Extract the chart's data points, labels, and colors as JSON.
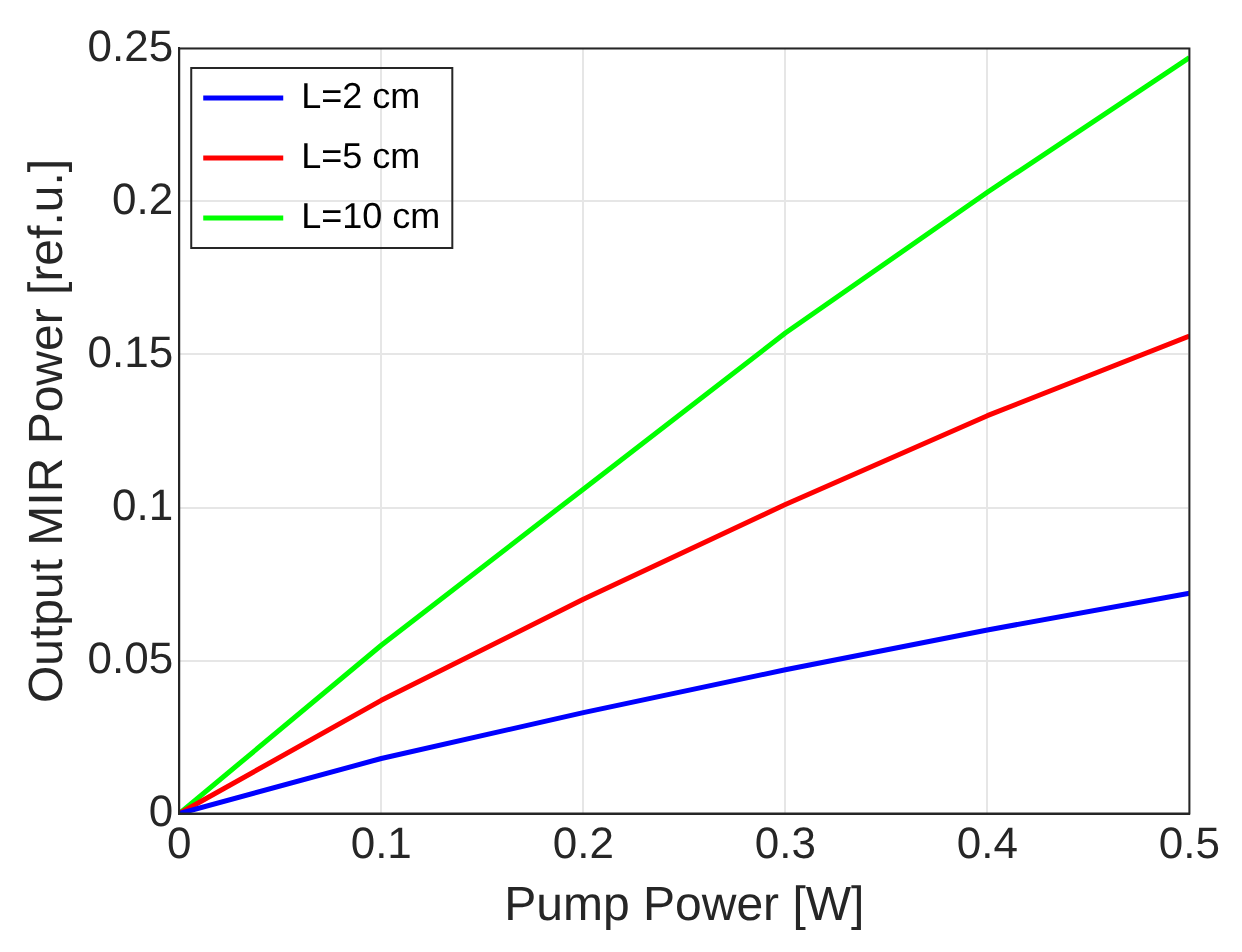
{
  "chart_data": {
    "type": "line",
    "xlabel": "Pump Power [W]",
    "ylabel": "Output MIR Power [ref.u.]",
    "x": [
      0,
      0.1,
      0.2,
      0.3,
      0.4,
      0.5
    ],
    "series": [
      {
        "name": "L=2 cm",
        "color": "#0000ff",
        "values": [
          0,
          0.018,
          0.033,
          0.047,
          0.06,
          0.072
        ]
      },
      {
        "name": "L=5 cm",
        "color": "#ff0000",
        "values": [
          0,
          0.037,
          0.07,
          0.101,
          0.13,
          0.156
        ]
      },
      {
        "name": "L=10 cm",
        "color": "#00ff00",
        "values": [
          0,
          0.055,
          0.106,
          0.157,
          0.203,
          0.247
        ]
      }
    ],
    "xlim": [
      0,
      0.5
    ],
    "xticks": [
      0,
      0.1,
      0.2,
      0.3,
      0.4,
      0.5
    ],
    "ylim": [
      0,
      0.25
    ],
    "yticks": [
      0,
      0.05,
      0.1,
      0.15,
      0.2,
      0.25
    ],
    "grid": true,
    "legend": "top left",
    "marker": "none",
    "line_style": "solid"
  }
}
